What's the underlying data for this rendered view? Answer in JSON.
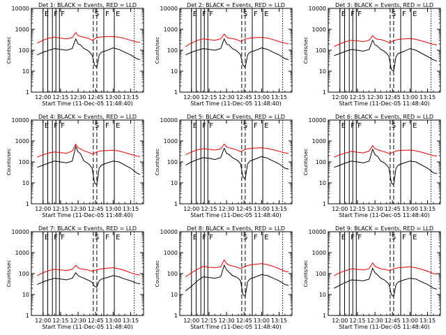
{
  "figure": {
    "panels": [
      {
        "title": "Det 1: BLACK = Events, RED = LLD",
        "x_title": "Start Time (11-Dec-05 11:48:40)",
        "y_title": "Counts/sec"
      },
      {
        "title": "Det 2: BLACK = Events, RED = LLD",
        "x_title": "Start Time (11-Dec-05 11:48:40)",
        "y_title": "Counts/sec"
      },
      {
        "title": "Det 3: BLACK = Events, RED = LLD",
        "x_title": "Start Time (11-Dec-05 11:48:40)",
        "y_title": "Counts/sec"
      },
      {
        "title": "Det 4: BLACK = Events, RED = LLD",
        "x_title": "Start Time (11-Dec-05 11:48:40)",
        "y_title": "Counts/sec"
      },
      {
        "title": "Det 5: BLACK = Events, RED = LLD",
        "x_title": "Start Time (11-Dec-05 11:48:40)",
        "y_title": "Counts/sec"
      },
      {
        "title": "Det 6: BLACK = Events, RED = LLD",
        "x_title": "Start Time (11-Dec-05 11:48:40)",
        "y_title": "Counts/sec"
      },
      {
        "title": "Det 7: BLACK = Events, RED = LLD",
        "x_title": "Start Time (11-Dec-05 11:48:40)",
        "y_title": "Counts/sec"
      },
      {
        "title": "Det 8: BLACK = Events, RED = LLD",
        "x_title": "Start Time (11-Dec-05 11:48:40)",
        "y_title": "Counts/sec"
      },
      {
        "title": "Det 9: BLACK = Events, RED = LLD",
        "x_title": "Start Time (11-Dec-05 11:48:40)",
        "y_title": "Counts/sec"
      }
    ]
  },
  "chart_data": {
    "type": "line",
    "x_unit": "minutes after 12:00",
    "y_scale": "log",
    "ylim": [
      1,
      10000
    ],
    "xlim": [
      -10,
      86
    ],
    "x_ticks": [
      0,
      15,
      30,
      45,
      60,
      75
    ],
    "x_tick_labels": [
      "12:00",
      "12:15",
      "12:30",
      "12:45",
      "13:00",
      "13:15"
    ],
    "y_ticks": [
      1,
      10,
      100,
      1000,
      10000
    ],
    "y_tick_labels": [
      "1",
      "10",
      "100",
      "1000",
      "10000"
    ],
    "series_colors": {
      "events": "#000000",
      "lld": "#dd0000"
    },
    "markers": [
      {
        "x": 0,
        "style": "solid",
        "label": "E"
      },
      {
        "x": 4,
        "style": "solid",
        "label": ""
      },
      {
        "x": 8,
        "style": "solid",
        "label": "F"
      },
      {
        "x": 11,
        "style": "solid",
        "label": ""
      },
      {
        "x": 14,
        "style": "solid",
        "label": "F"
      },
      {
        "x": 43,
        "style": "dashed",
        "label": "S"
      },
      {
        "x": 46,
        "style": "dashed",
        "label": ""
      },
      {
        "x": 52,
        "style": "solid",
        "label": "F"
      },
      {
        "x": 61,
        "style": "solid",
        "label": "E"
      },
      {
        "x": 78,
        "style": "dotted",
        "label": ""
      }
    ],
    "x": [
      -5,
      0,
      5,
      10,
      15,
      20,
      25,
      28,
      30,
      32,
      35,
      38,
      40,
      42,
      44,
      46,
      48,
      50,
      55,
      60,
      65,
      70,
      75,
      80,
      83
    ],
    "panels": [
      {
        "events": [
          60,
          80,
          100,
          120,
          110,
          100,
          120,
          350,
          200,
          180,
          120,
          100,
          80,
          60,
          20,
          15,
          60,
          80,
          100,
          130,
          110,
          80,
          60,
          40,
          35
        ],
        "lld": [
          220,
          300,
          380,
          420,
          380,
          350,
          400,
          700,
          500,
          450,
          420,
          380,
          340,
          300,
          350,
          400,
          420,
          430,
          450,
          450,
          420,
          360,
          300,
          250,
          240
        ]
      },
      {
        "events": [
          60,
          80,
          100,
          120,
          110,
          100,
          120,
          350,
          200,
          180,
          120,
          100,
          80,
          60,
          20,
          15,
          60,
          80,
          100,
          130,
          110,
          80,
          60,
          40,
          35
        ],
        "lld": [
          150,
          220,
          300,
          350,
          320,
          300,
          350,
          600,
          420,
          380,
          360,
          330,
          300,
          270,
          300,
          340,
          360,
          380,
          400,
          410,
          380,
          320,
          260,
          220,
          200
        ]
      },
      {
        "events": [
          55,
          70,
          90,
          110,
          100,
          90,
          110,
          300,
          180,
          160,
          110,
          90,
          70,
          50,
          12,
          10,
          50,
          70,
          90,
          120,
          100,
          70,
          50,
          35,
          30
        ],
        "lld": [
          150,
          200,
          260,
          300,
          280,
          260,
          300,
          500,
          380,
          340,
          320,
          290,
          260,
          230,
          250,
          290,
          310,
          330,
          350,
          360,
          330,
          280,
          230,
          190,
          180
        ]
      },
      {
        "events": [
          55,
          70,
          90,
          110,
          100,
          90,
          110,
          550,
          300,
          250,
          110,
          90,
          70,
          50,
          10,
          8,
          50,
          70,
          90,
          110,
          100,
          70,
          50,
          30,
          25
        ],
        "lld": [
          170,
          220,
          270,
          300,
          280,
          260,
          330,
          700,
          480,
          420,
          340,
          300,
          270,
          240,
          260,
          300,
          320,
          340,
          350,
          360,
          330,
          280,
          230,
          190,
          180
        ]
      },
      {
        "events": [
          70,
          100,
          130,
          160,
          150,
          130,
          160,
          450,
          260,
          230,
          160,
          130,
          110,
          80,
          20,
          15,
          80,
          110,
          140,
          180,
          150,
          110,
          80,
          50,
          45
        ],
        "lld": [
          220,
          300,
          380,
          430,
          400,
          370,
          420,
          700,
          520,
          470,
          430,
          390,
          350,
          310,
          350,
          400,
          420,
          440,
          460,
          470,
          440,
          380,
          320,
          270,
          260
        ]
      },
      {
        "events": [
          55,
          70,
          90,
          110,
          100,
          90,
          110,
          400,
          220,
          190,
          110,
          90,
          70,
          50,
          10,
          8,
          50,
          70,
          90,
          110,
          100,
          70,
          50,
          30,
          28
        ],
        "lld": [
          170,
          220,
          270,
          320,
          290,
          270,
          330,
          600,
          430,
          390,
          340,
          310,
          280,
          250,
          270,
          310,
          330,
          350,
          360,
          370,
          340,
          290,
          240,
          200,
          190
        ]
      },
      {
        "events": [
          30,
          40,
          50,
          60,
          55,
          50,
          60,
          110,
          80,
          70,
          60,
          50,
          45,
          38,
          25,
          22,
          45,
          55,
          65,
          80,
          70,
          55,
          45,
          35,
          32
        ],
        "lld": [
          80,
          110,
          140,
          160,
          150,
          140,
          160,
          250,
          190,
          170,
          160,
          150,
          140,
          130,
          140,
          150,
          160,
          170,
          180,
          190,
          170,
          140,
          110,
          90,
          85
        ]
      },
      {
        "events": [
          15,
          25,
          45,
          70,
          65,
          60,
          70,
          250,
          150,
          120,
          80,
          70,
          60,
          45,
          10,
          8,
          40,
          55,
          70,
          90,
          80,
          60,
          45,
          30,
          28
        ],
        "lld": [
          70,
          110,
          160,
          220,
          200,
          190,
          210,
          450,
          300,
          260,
          230,
          210,
          190,
          170,
          190,
          220,
          240,
          260,
          280,
          300,
          270,
          220,
          170,
          130,
          120
        ]
      },
      {
        "events": [
          20,
          28,
          38,
          50,
          48,
          45,
          55,
          180,
          110,
          90,
          60,
          50,
          40,
          30,
          10,
          8,
          30,
          40,
          50,
          60,
          55,
          40,
          30,
          20,
          18
        ],
        "lld": [
          80,
          110,
          140,
          170,
          160,
          150,
          170,
          320,
          220,
          200,
          170,
          160,
          150,
          140,
          150,
          170,
          180,
          190,
          200,
          210,
          190,
          160,
          130,
          100,
          95
        ]
      }
    ]
  }
}
